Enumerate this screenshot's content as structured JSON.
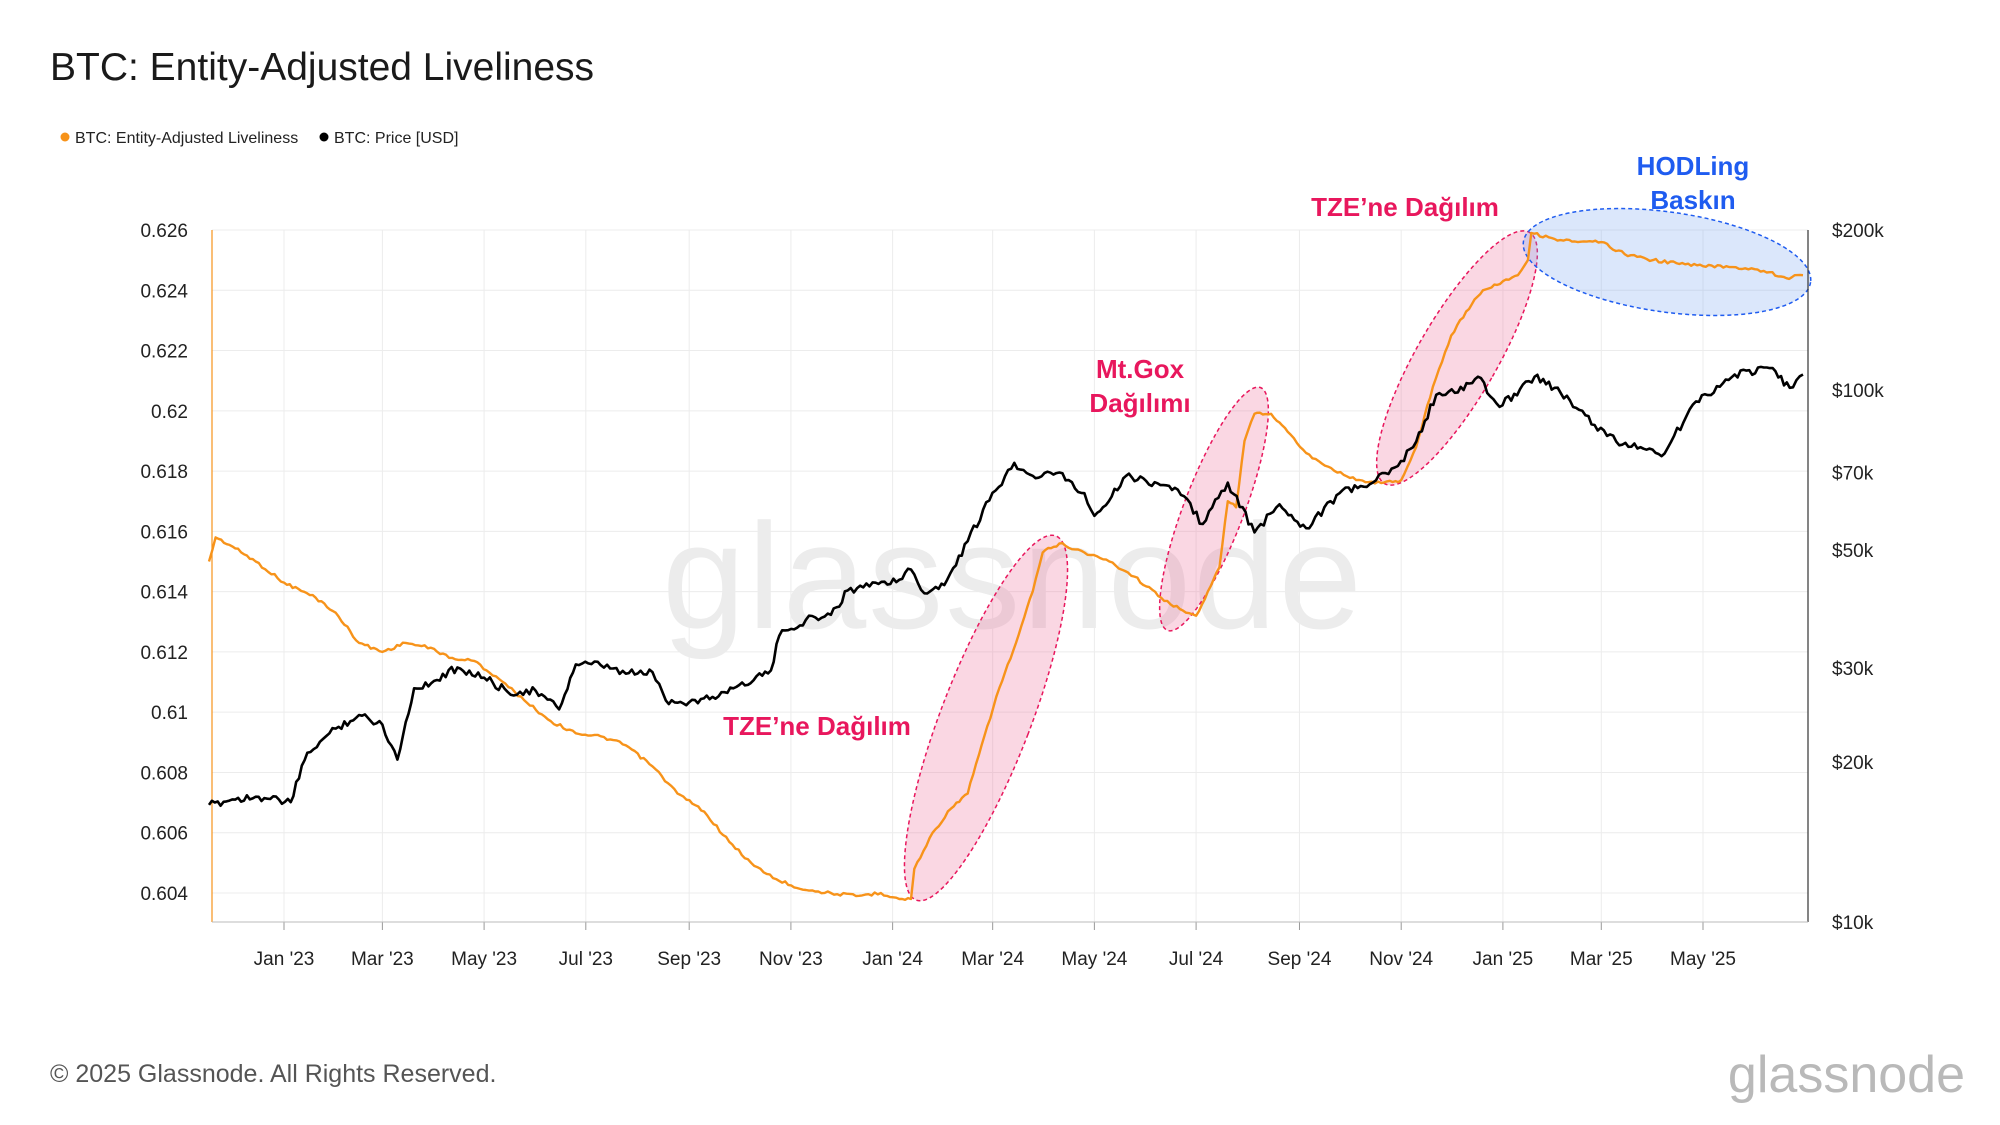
{
  "chart_data": {
    "type": "line",
    "title": "BTC: Entity-Adjusted Liveliness",
    "legend": [
      {
        "label": "BTC: Entity-Adjusted Liveliness",
        "color": "#f7931a"
      },
      {
        "label": "BTC: Price [USD]",
        "color": "#000000"
      }
    ],
    "x_ticks": [
      "Jan '23",
      "Mar '23",
      "May '23",
      "Jul '23",
      "Sep '23",
      "Nov '23",
      "Jan '24",
      "Mar '24",
      "May '24",
      "Jul '24",
      "Sep '24",
      "Nov '24",
      "Jan '25",
      "Mar '25",
      "May '25"
    ],
    "x_tick_dates": [
      "2023-01-01",
      "2023-03-01",
      "2023-05-01",
      "2023-07-01",
      "2023-09-01",
      "2023-11-01",
      "2024-01-01",
      "2024-03-01",
      "2024-05-01",
      "2024-07-01",
      "2024-09-01",
      "2024-11-01",
      "2025-01-01",
      "2025-03-01",
      "2025-05-01"
    ],
    "x_range": [
      "2022-11-17",
      "2025-06-30"
    ],
    "y_left": {
      "ticks": [
        "0.626",
        "0.624",
        "0.622",
        "0.62",
        "0.618",
        "0.616",
        "0.614",
        "0.612",
        "0.61",
        "0.608",
        "0.606",
        "0.604"
      ],
      "range": [
        0.6035,
        0.6265
      ]
    },
    "y_right": {
      "ticks": [
        "$200k",
        "$100k",
        "$70k",
        "$50k",
        "$30k",
        "$20k",
        "$10k"
      ],
      "tick_values": [
        200000,
        100000,
        70000,
        50000,
        30000,
        20000,
        10000
      ],
      "scale": "log",
      "range": [
        10000,
        200000
      ]
    },
    "grid": true,
    "legend_position": "top-left",
    "series": [
      {
        "name": "BTC: Entity-Adjusted Liveliness",
        "color": "#f7931a",
        "axis": "left",
        "points": [
          [
            "2022-11-17",
            0.615
          ],
          [
            "2022-11-21",
            0.6158
          ],
          [
            "2022-12-01",
            0.6155
          ],
          [
            "2022-12-15",
            0.615
          ],
          [
            "2023-01-01",
            0.6143
          ],
          [
            "2023-01-20",
            0.6138
          ],
          [
            "2023-02-01",
            0.6133
          ],
          [
            "2023-02-15",
            0.6123
          ],
          [
            "2023-03-01",
            0.612
          ],
          [
            "2023-03-15",
            0.6123
          ],
          [
            "2023-04-01",
            0.6121
          ],
          [
            "2023-04-10",
            0.6118
          ],
          [
            "2023-04-25",
            0.6117
          ],
          [
            "2023-05-10",
            0.6111
          ],
          [
            "2023-05-25",
            0.6104
          ],
          [
            "2023-06-10",
            0.6097
          ],
          [
            "2023-06-25",
            0.6093
          ],
          [
            "2023-07-10",
            0.6092
          ],
          [
            "2023-07-25",
            0.6089
          ],
          [
            "2023-08-10",
            0.6082
          ],
          [
            "2023-08-25",
            0.6073
          ],
          [
            "2023-09-10",
            0.6067
          ],
          [
            "2023-09-25",
            0.6057
          ],
          [
            "2023-10-10",
            0.6049
          ],
          [
            "2023-10-25",
            0.6044
          ],
          [
            "2023-11-10",
            0.6041
          ],
          [
            "2023-11-25",
            0.604
          ],
          [
            "2023-12-10",
            0.6039
          ],
          [
            "2023-12-25",
            0.604
          ],
          [
            "2024-01-05",
            0.6038
          ],
          [
            "2024-01-12",
            0.6038
          ],
          [
            "2024-01-14",
            0.6048
          ],
          [
            "2024-01-25",
            0.606
          ],
          [
            "2024-02-05",
            0.6068
          ],
          [
            "2024-02-15",
            0.6073
          ],
          [
            "2024-02-25",
            0.6092
          ],
          [
            "2024-03-05",
            0.6108
          ],
          [
            "2024-03-15",
            0.6123
          ],
          [
            "2024-03-25",
            0.614
          ],
          [
            "2024-03-31",
            0.6153
          ],
          [
            "2024-04-10",
            0.6156
          ],
          [
            "2024-04-25",
            0.6153
          ],
          [
            "2024-05-10",
            0.615
          ],
          [
            "2024-05-25",
            0.6145
          ],
          [
            "2024-06-10",
            0.6138
          ],
          [
            "2024-06-25",
            0.6133
          ],
          [
            "2024-07-01",
            0.6132
          ],
          [
            "2024-07-08",
            0.614
          ],
          [
            "2024-07-15",
            0.6148
          ],
          [
            "2024-07-20",
            0.617
          ],
          [
            "2024-07-25",
            0.6168
          ],
          [
            "2024-07-30",
            0.619
          ],
          [
            "2024-08-05",
            0.6199
          ],
          [
            "2024-08-15",
            0.6199
          ],
          [
            "2024-08-25",
            0.6193
          ],
          [
            "2024-09-05",
            0.6186
          ],
          [
            "2024-09-20",
            0.6181
          ],
          [
            "2024-10-05",
            0.6177
          ],
          [
            "2024-10-20",
            0.6176
          ],
          [
            "2024-11-01",
            0.6177
          ],
          [
            "2024-11-10",
            0.6188
          ],
          [
            "2024-11-20",
            0.6208
          ],
          [
            "2024-12-01",
            0.6225
          ],
          [
            "2024-12-10",
            0.6233
          ],
          [
            "2024-12-20",
            0.624
          ],
          [
            "2025-01-01",
            0.6243
          ],
          [
            "2025-01-10",
            0.6245
          ],
          [
            "2025-01-16",
            0.625
          ],
          [
            "2025-01-18",
            0.6259
          ],
          [
            "2025-02-01",
            0.6257
          ],
          [
            "2025-02-15",
            0.6256
          ],
          [
            "2025-03-01",
            0.6256
          ],
          [
            "2025-03-15",
            0.6252
          ],
          [
            "2025-04-01",
            0.625
          ],
          [
            "2025-04-15",
            0.6249
          ],
          [
            "2025-05-01",
            0.6248
          ],
          [
            "2025-05-15",
            0.6248
          ],
          [
            "2025-06-01",
            0.6247
          ],
          [
            "2025-06-10",
            0.6246
          ],
          [
            "2025-06-20",
            0.6244
          ],
          [
            "2025-06-30",
            0.6245
          ]
        ]
      },
      {
        "name": "BTC: Price [USD]",
        "color": "#000000",
        "axis": "right",
        "points": [
          [
            "2022-11-17",
            16600
          ],
          [
            "2022-12-01",
            17000
          ],
          [
            "2022-12-15",
            17200
          ],
          [
            "2023-01-05",
            16800
          ],
          [
            "2023-01-15",
            20800
          ],
          [
            "2023-02-01",
            23100
          ],
          [
            "2023-02-15",
            24500
          ],
          [
            "2023-03-01",
            23500
          ],
          [
            "2023-03-10",
            20200
          ],
          [
            "2023-03-20",
            27500
          ],
          [
            "2023-04-01",
            28400
          ],
          [
            "2023-04-15",
            30100
          ],
          [
            "2023-05-01",
            28800
          ],
          [
            "2023-05-15",
            27100
          ],
          [
            "2023-06-01",
            27200
          ],
          [
            "2023-06-15",
            25100
          ],
          [
            "2023-06-25",
            30500
          ],
          [
            "2023-07-10",
            30400
          ],
          [
            "2023-07-25",
            29300
          ],
          [
            "2023-08-10",
            29500
          ],
          [
            "2023-08-18",
            26100
          ],
          [
            "2023-09-01",
            25900
          ],
          [
            "2023-09-15",
            26500
          ],
          [
            "2023-10-01",
            27900
          ],
          [
            "2023-10-20",
            29700
          ],
          [
            "2023-10-25",
            34500
          ],
          [
            "2023-11-10",
            37000
          ],
          [
            "2023-11-25",
            37800
          ],
          [
            "2023-12-05",
            42000
          ],
          [
            "2023-12-20",
            43500
          ],
          [
            "2024-01-05",
            44000
          ],
          [
            "2024-01-12",
            46000
          ],
          [
            "2024-01-20",
            41500
          ],
          [
            "2024-02-01",
            43000
          ],
          [
            "2024-02-15",
            52000
          ],
          [
            "2024-02-28",
            62000
          ],
          [
            "2024-03-14",
            73000
          ],
          [
            "2024-03-25",
            69000
          ],
          [
            "2024-04-10",
            70000
          ],
          [
            "2024-04-25",
            64000
          ],
          [
            "2024-05-01",
            58000
          ],
          [
            "2024-05-20",
            69000
          ],
          [
            "2024-06-01",
            67500
          ],
          [
            "2024-06-20",
            65000
          ],
          [
            "2024-07-05",
            56000
          ],
          [
            "2024-07-20",
            67000
          ],
          [
            "2024-08-05",
            54000
          ],
          [
            "2024-08-20",
            61000
          ],
          [
            "2024-09-05",
            55000
          ],
          [
            "2024-09-25",
            64000
          ],
          [
            "2024-10-15",
            67000
          ],
          [
            "2024-10-30",
            72000
          ],
          [
            "2024-11-10",
            80000
          ],
          [
            "2024-11-22",
            98000
          ],
          [
            "2024-12-05",
            99000
          ],
          [
            "2024-12-17",
            106000
          ],
          [
            "2024-12-30",
            93000
          ],
          [
            "2025-01-20",
            106000
          ],
          [
            "2025-02-01",
            101000
          ],
          [
            "2025-02-25",
            86000
          ],
          [
            "2025-03-10",
            80000
          ],
          [
            "2025-04-08",
            76000
          ],
          [
            "2025-04-25",
            94000
          ],
          [
            "2025-05-20",
            107000
          ],
          [
            "2025-06-10",
            110000
          ],
          [
            "2025-06-22",
            101000
          ],
          [
            "2025-06-30",
            107000
          ]
        ]
      }
    ],
    "annotations": [
      {
        "text": "TZE’ne Dağılım",
        "color": "#e8175d"
      },
      {
        "text": "Mt.Gox",
        "color": "#e8175d"
      },
      {
        "text": "Dağılımı",
        "color": "#e8175d"
      },
      {
        "text": "TZE’ne Dağılım",
        "color": "#e8175d"
      },
      {
        "text": "HODLing",
        "color": "#1f5cf0"
      },
      {
        "text": "Baskın",
        "color": "#1f5cf0"
      }
    ]
  },
  "footer": {
    "copyright": "© 2025 Glassnode. All Rights Reserved.",
    "brand": "glassnode",
    "watermark": "glassnode"
  }
}
